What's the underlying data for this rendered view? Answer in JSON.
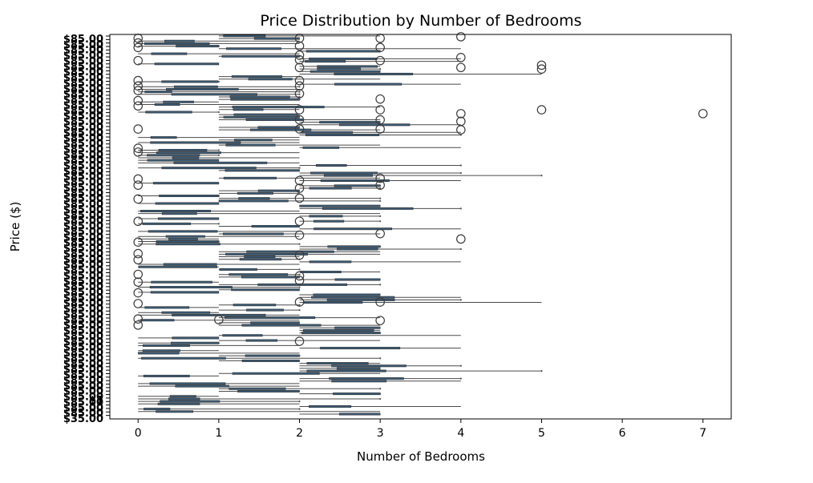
{
  "chart_data": {
    "type": "box",
    "orientation": "horizontal",
    "title": "Price Distribution by Number of Bedrooms",
    "xlabel": "Number of Bedrooms",
    "ylabel": "Price ($)",
    "xlim": [
      -0.35,
      7.35
    ],
    "x_ticks": [
      0,
      1,
      2,
      3,
      4,
      5,
      6,
      7
    ],
    "y_ticks_legible": [
      "$85.00",
      "$1",
      "$35.00"
    ],
    "outlier_markers": [
      {
        "x": 0,
        "y": 0.01
      },
      {
        "x": 0,
        "y": 0.022
      },
      {
        "x": 0,
        "y": 0.034
      },
      {
        "x": 0,
        "y": 0.068
      },
      {
        "x": 0,
        "y": 0.12
      },
      {
        "x": 0,
        "y": 0.134
      },
      {
        "x": 0,
        "y": 0.146
      },
      {
        "x": 0,
        "y": 0.172
      },
      {
        "x": 0,
        "y": 0.186
      },
      {
        "x": 0,
        "y": 0.246
      },
      {
        "x": 0,
        "y": 0.296
      },
      {
        "x": 0,
        "y": 0.306
      },
      {
        "x": 0,
        "y": 0.376
      },
      {
        "x": 0,
        "y": 0.392
      },
      {
        "x": 0,
        "y": 0.428
      },
      {
        "x": 0,
        "y": 0.486
      },
      {
        "x": 0,
        "y": 0.54
      },
      {
        "x": 0,
        "y": 0.57
      },
      {
        "x": 0,
        "y": 0.586
      },
      {
        "x": 0,
        "y": 0.624
      },
      {
        "x": 0,
        "y": 0.644
      },
      {
        "x": 0,
        "y": 0.672
      },
      {
        "x": 0,
        "y": 0.7
      },
      {
        "x": 0,
        "y": 0.74
      },
      {
        "x": 0,
        "y": 0.756
      },
      {
        "x": 1,
        "y": 0.742
      },
      {
        "x": 2,
        "y": 0.01
      },
      {
        "x": 2,
        "y": 0.03
      },
      {
        "x": 2,
        "y": 0.054
      },
      {
        "x": 2,
        "y": 0.066
      },
      {
        "x": 2,
        "y": 0.086
      },
      {
        "x": 2,
        "y": 0.12
      },
      {
        "x": 2,
        "y": 0.134
      },
      {
        "x": 2,
        "y": 0.154
      },
      {
        "x": 2,
        "y": 0.196
      },
      {
        "x": 2,
        "y": 0.222
      },
      {
        "x": 2,
        "y": 0.246
      },
      {
        "x": 2,
        "y": 0.38
      },
      {
        "x": 2,
        "y": 0.4
      },
      {
        "x": 2,
        "y": 0.426
      },
      {
        "x": 2,
        "y": 0.486
      },
      {
        "x": 2,
        "y": 0.522
      },
      {
        "x": 2,
        "y": 0.574
      },
      {
        "x": 2,
        "y": 0.628
      },
      {
        "x": 2,
        "y": 0.64
      },
      {
        "x": 2,
        "y": 0.696
      },
      {
        "x": 2,
        "y": 0.798
      },
      {
        "x": 3,
        "y": 0.01
      },
      {
        "x": 3,
        "y": 0.034
      },
      {
        "x": 3,
        "y": 0.068
      },
      {
        "x": 3,
        "y": 0.168
      },
      {
        "x": 3,
        "y": 0.196
      },
      {
        "x": 3,
        "y": 0.222
      },
      {
        "x": 3,
        "y": 0.246
      },
      {
        "x": 3,
        "y": 0.374
      },
      {
        "x": 3,
        "y": 0.392
      },
      {
        "x": 3,
        "y": 0.518
      },
      {
        "x": 3,
        "y": 0.696
      },
      {
        "x": 3,
        "y": 0.744
      },
      {
        "x": 4,
        "y": 0.006
      },
      {
        "x": 4,
        "y": 0.06
      },
      {
        "x": 4,
        "y": 0.086
      },
      {
        "x": 4,
        "y": 0.206
      },
      {
        "x": 4,
        "y": 0.226
      },
      {
        "x": 4,
        "y": 0.248
      },
      {
        "x": 4,
        "y": 0.532
      },
      {
        "x": 5,
        "y": 0.08
      },
      {
        "x": 5,
        "y": 0.09
      },
      {
        "x": 5,
        "y": 0.196
      },
      {
        "x": 7,
        "y": 0.206
      }
    ]
  }
}
